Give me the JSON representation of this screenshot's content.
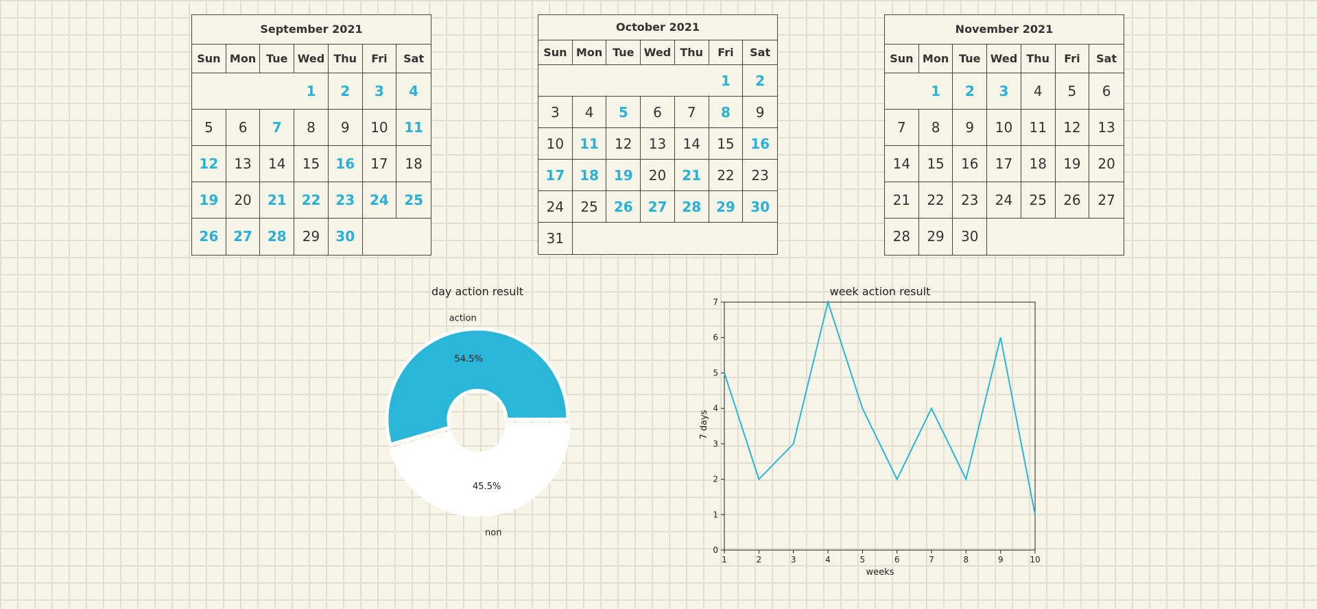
{
  "weekday_headers": [
    "Sun",
    "Mon",
    "Tue",
    "Wed",
    "Thu",
    "Fri",
    "Sat"
  ],
  "highlight_color": "#29b1d6",
  "calendars": [
    {
      "id": "cal-sep",
      "title": "September 2021",
      "first_weekday": 3,
      "days": 30,
      "highlighted": [
        1,
        2,
        3,
        4,
        7,
        11,
        12,
        16,
        19,
        21,
        22,
        23,
        24,
        25,
        26,
        27,
        28,
        30
      ]
    },
    {
      "id": "cal-oct",
      "title": "October 2021",
      "first_weekday": 5,
      "days": 31,
      "highlighted": [
        1,
        2,
        5,
        8,
        11,
        16,
        17,
        18,
        19,
        21,
        26,
        27,
        28,
        29,
        30
      ]
    },
    {
      "id": "cal-nov",
      "title": "November 2021",
      "first_weekday": 1,
      "days": 30,
      "highlighted": [
        1,
        2,
        3
      ]
    }
  ],
  "chart_data": [
    {
      "type": "pie",
      "title": "day action result",
      "labels": [
        "action",
        "non"
      ],
      "values": [
        54.5,
        45.5
      ],
      "autopct": [
        "54.5%",
        "45.5%"
      ],
      "colors": [
        "#29b6d8",
        "#ffffff"
      ],
      "donut": true
    },
    {
      "type": "line",
      "title": "week action result",
      "xlabel": "weeks",
      "ylabel": "7 days",
      "x": [
        1,
        2,
        3,
        4,
        5,
        6,
        7,
        8,
        9,
        10
      ],
      "series": [
        {
          "values": [
            5,
            2,
            3,
            7,
            4,
            2,
            4,
            2,
            6,
            1
          ],
          "color": "#29b6d8"
        }
      ],
      "xlim": [
        1,
        10
      ],
      "ylim": [
        0,
        7
      ],
      "xticks": [
        "1",
        "2",
        "3",
        "4",
        "5",
        "6",
        "7",
        "8",
        "9",
        "10"
      ],
      "yticks": [
        "0",
        "1",
        "2",
        "3",
        "4",
        "5",
        "6",
        "7"
      ]
    }
  ]
}
